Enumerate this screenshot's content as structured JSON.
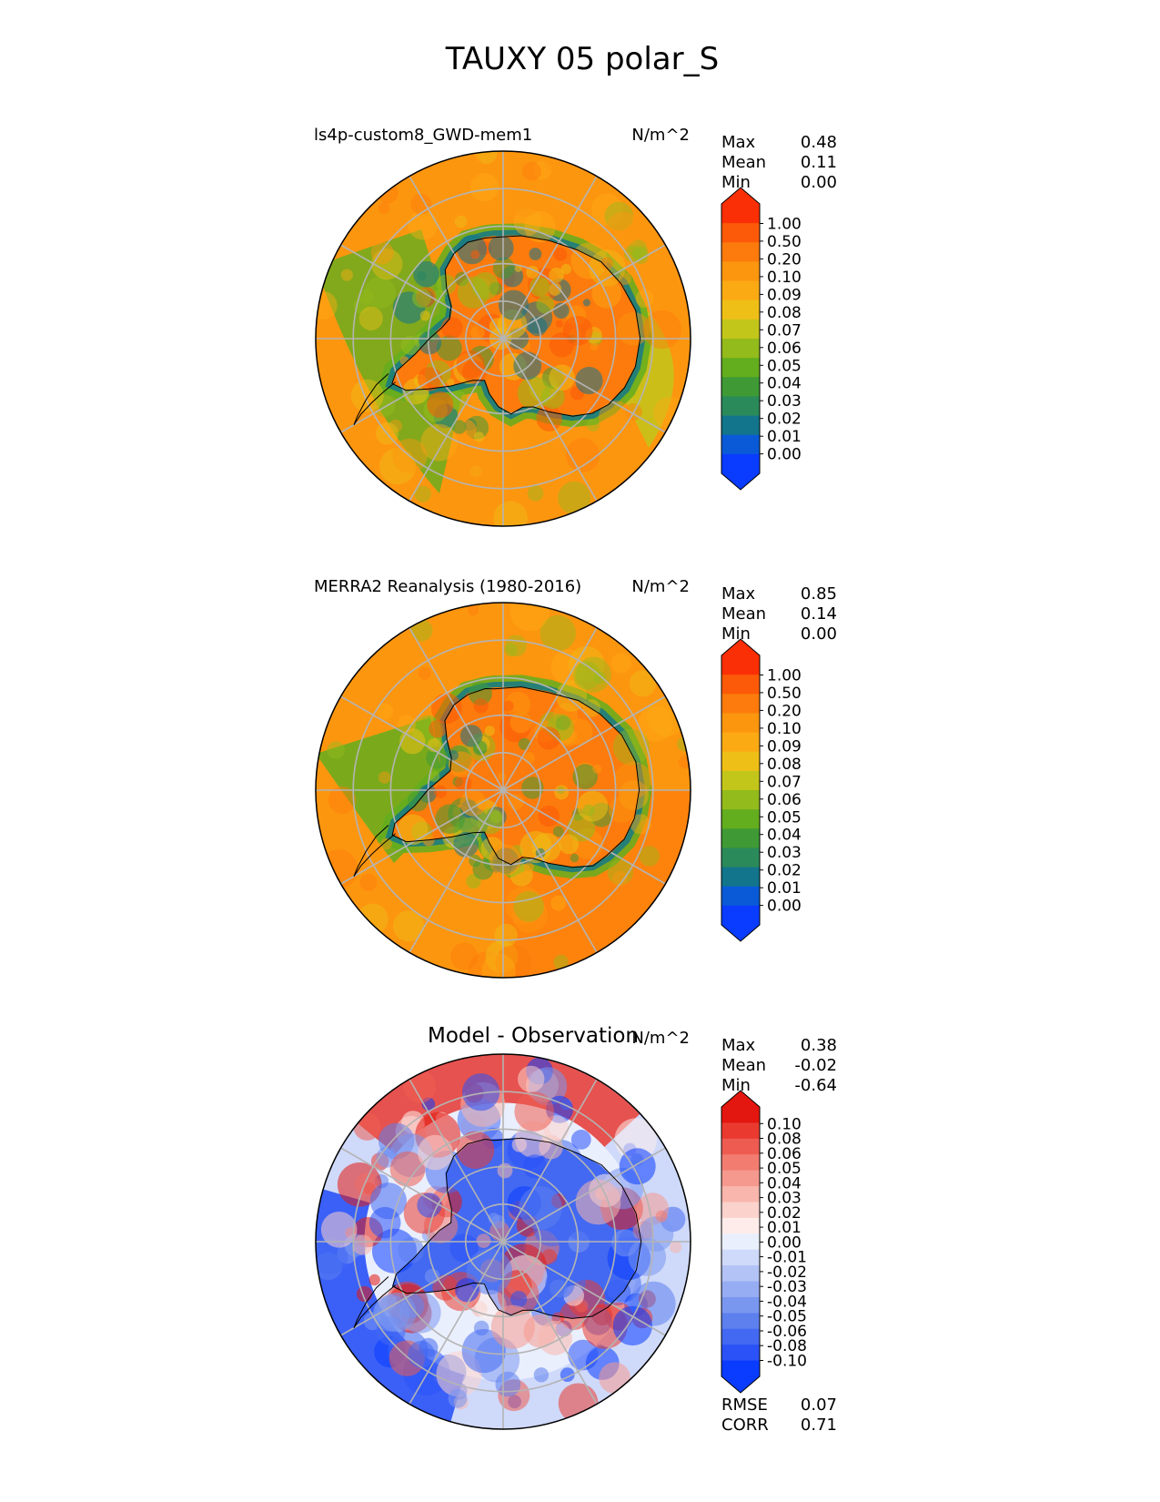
{
  "figure": {
    "title": "TAUXY 05 polar_S"
  },
  "palettes": {
    "sequential": [
      "#0a3cff",
      "#0a5ad8",
      "#12758c",
      "#2b8a5a",
      "#3f9a36",
      "#63ae1e",
      "#93bb1c",
      "#c3c61a",
      "#eebf16",
      "#fcaa14",
      "#fd960f",
      "#fc7b0c",
      "#fc5a08",
      "#fa2f05"
    ],
    "diverging": [
      "#0a3cff",
      "#2a52f7",
      "#4369f2",
      "#5d80ee",
      "#7a97f0",
      "#97adf3",
      "#b3c3f6",
      "#cfd9fa",
      "#eaeffd",
      "#fdecea",
      "#fbd2cc",
      "#f8b6ad",
      "#f5998e",
      "#f27c70",
      "#ee5c51",
      "#ea3a30",
      "#e3170f"
    ],
    "land_outline": "#000000",
    "grid_color": "#b4b4b4"
  },
  "panels": [
    {
      "id": "test",
      "title": "ls4p-custom8_GWD-mem1",
      "units": "N/m^2",
      "stats": [
        {
          "label": "Max",
          "value": "0.48"
        },
        {
          "label": "Mean",
          "value": "0.11"
        },
        {
          "label": "Min",
          "value": "0.00"
        }
      ],
      "colorbar": {
        "palette": "sequential",
        "extend": "both",
        "tick_labels": [
          "1.00",
          "0.50",
          "0.20",
          "0.10",
          "0.09",
          "0.08",
          "0.07",
          "0.06",
          "0.05",
          "0.04",
          "0.03",
          "0.02",
          "0.01",
          "0.00"
        ]
      },
      "map": {
        "projection": "south-polar-stereographic",
        "field_style": "model"
      }
    },
    {
      "id": "reference",
      "title": "MERRA2 Reanalysis (1980-2016)",
      "units": "N/m^2",
      "stats": [
        {
          "label": "Max",
          "value": "0.85"
        },
        {
          "label": "Mean",
          "value": "0.14"
        },
        {
          "label": "Min",
          "value": "0.00"
        }
      ],
      "colorbar": {
        "palette": "sequential",
        "extend": "both",
        "tick_labels": [
          "1.00",
          "0.50",
          "0.20",
          "0.10",
          "0.09",
          "0.08",
          "0.07",
          "0.06",
          "0.05",
          "0.04",
          "0.03",
          "0.02",
          "0.01",
          "0.00"
        ]
      },
      "map": {
        "projection": "south-polar-stereographic",
        "field_style": "reanalysis"
      }
    },
    {
      "id": "difference",
      "title": "Model - Observation",
      "units": "N/m^2",
      "stats": [
        {
          "label": "Max",
          "value": "0.38"
        },
        {
          "label": "Mean",
          "value": "-0.02"
        },
        {
          "label": "Min",
          "value": "-0.64"
        }
      ],
      "colorbar": {
        "palette": "diverging",
        "extend": "both",
        "tick_labels": [
          "0.10",
          "0.08",
          "0.06",
          "0.05",
          "0.04",
          "0.03",
          "0.02",
          "0.01",
          "0.00",
          "-0.01",
          "-0.02",
          "-0.03",
          "-0.04",
          "-0.05",
          "-0.06",
          "-0.08",
          "-0.10"
        ]
      },
      "metrics": [
        {
          "label": "RMSE",
          "value": "0.07"
        },
        {
          "label": "CORR",
          "value": "0.71"
        }
      ],
      "map": {
        "projection": "south-polar-stereographic",
        "field_style": "difference"
      }
    }
  ],
  "chart_data": [
    {
      "type": "heatmap",
      "title": "ls4p-custom8_GWD-mem1",
      "variable": "TAUXY",
      "units": "N/m^2",
      "projection": "south-polar-stereographic",
      "stats": {
        "max": 0.48,
        "mean": 0.11,
        "min": 0.0
      },
      "color_levels": [
        0.0,
        0.01,
        0.02,
        0.03,
        0.04,
        0.05,
        0.06,
        0.07,
        0.08,
        0.09,
        0.1,
        0.2,
        0.5,
        1.0
      ],
      "grid": true
    },
    {
      "type": "heatmap",
      "title": "MERRA2 Reanalysis (1980-2016)",
      "variable": "TAUXY",
      "units": "N/m^2",
      "projection": "south-polar-stereographic",
      "stats": {
        "max": 0.85,
        "mean": 0.14,
        "min": 0.0
      },
      "color_levels": [
        0.0,
        0.01,
        0.02,
        0.03,
        0.04,
        0.05,
        0.06,
        0.07,
        0.08,
        0.09,
        0.1,
        0.2,
        0.5,
        1.0
      ],
      "grid": true
    },
    {
      "type": "heatmap",
      "title": "Model - Observation",
      "variable": "TAUXY",
      "units": "N/m^2",
      "projection": "south-polar-stereographic",
      "stats": {
        "max": 0.38,
        "mean": -0.02,
        "min": -0.64
      },
      "metrics": {
        "rmse": 0.07,
        "corr": 0.71
      },
      "color_levels": [
        -0.1,
        -0.08,
        -0.06,
        -0.05,
        -0.04,
        -0.03,
        -0.02,
        -0.01,
        0.0,
        0.01,
        0.02,
        0.03,
        0.04,
        0.05,
        0.06,
        0.08,
        0.1
      ],
      "grid": true
    }
  ]
}
